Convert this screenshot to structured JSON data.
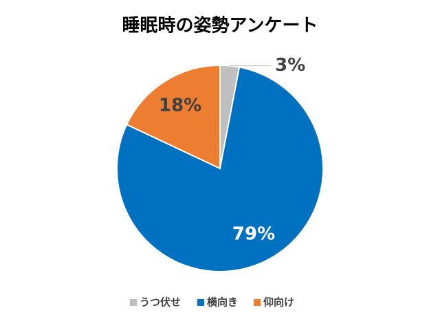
{
  "chart_data": {
    "type": "pie",
    "title": "睡眠時の姿勢アンケート",
    "categories": [
      "うつ伏せ",
      "横向き",
      "仰向け"
    ],
    "values": [
      3,
      79,
      18
    ],
    "value_labels": [
      "3%",
      "79%",
      "18%"
    ],
    "colors": [
      "#bfbfbf",
      "#0070c0",
      "#ed7d31"
    ],
    "legend": "bottom"
  }
}
